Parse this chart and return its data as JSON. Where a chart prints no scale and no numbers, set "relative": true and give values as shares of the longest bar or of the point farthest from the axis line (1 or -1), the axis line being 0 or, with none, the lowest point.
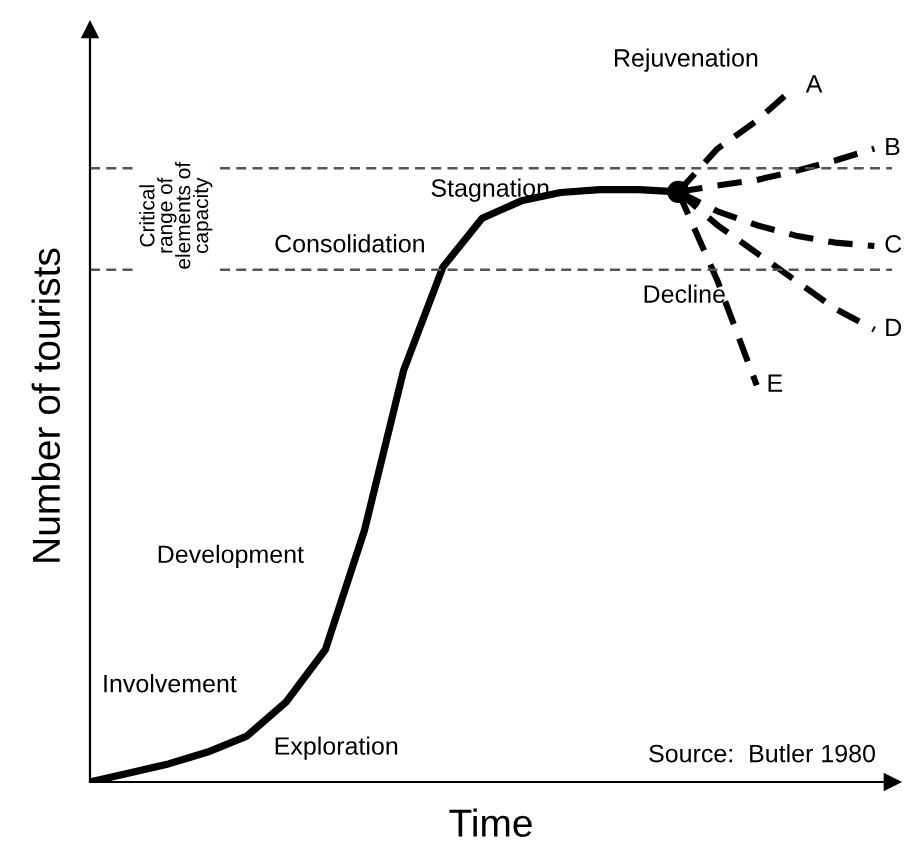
{
  "chart_data": {
    "type": "line",
    "relative": true,
    "xlabel": "Time",
    "ylabel": "Number of tourists",
    "line_style": "solid",
    "categories": [
      null,
      null,
      null,
      null,
      null,
      null,
      null,
      null,
      null,
      null,
      null,
      null,
      null,
      null,
      null,
      null,
      null,
      null,
      null,
      null,
      null
    ],
    "series": [
      {
        "color": "#000000",
        "values": [
          0,
          0.013,
          0.026,
          0.043,
          0.066,
          0.115,
          0.19,
          0.362,
          0.592,
          0.74,
          0.81,
          0.835,
          0.847,
          0.851,
          0.851,
          0.848,
          null,
          null,
          null,
          null,
          null
        ]
      },
      {
        "name": "A",
        "color": "#000000",
        "line_style": "dashed",
        "values": [
          null,
          null,
          null,
          null,
          null,
          null,
          null,
          null,
          null,
          null,
          null,
          null,
          null,
          null,
          null,
          0.848,
          0.91,
          0.95,
          1.0,
          null,
          null
        ]
      },
      {
        "name": "B",
        "color": "#000000",
        "line_style": "dashed",
        "values": [
          null,
          null,
          null,
          null,
          null,
          null,
          null,
          null,
          null,
          null,
          null,
          null,
          null,
          null,
          null,
          0.848,
          0.857,
          0.865,
          0.878,
          0.893,
          0.91
        ]
      },
      {
        "name": "C",
        "color": "#000000",
        "line_style": "dashed",
        "values": [
          null,
          null,
          null,
          null,
          null,
          null,
          null,
          null,
          null,
          null,
          null,
          null,
          null,
          null,
          null,
          0.848,
          0.82,
          0.8,
          0.785,
          0.775,
          0.77
        ]
      },
      {
        "name": "D",
        "color": "#000000",
        "line_style": "dashed",
        "values": [
          null,
          null,
          null,
          null,
          null,
          null,
          null,
          null,
          null,
          null,
          null,
          null,
          null,
          null,
          null,
          0.848,
          0.8,
          0.76,
          0.72,
          0.68,
          0.65
        ]
      },
      {
        "name": "E",
        "color": "#000000",
        "line_style": "dashed",
        "values": [
          null,
          null,
          null,
          null,
          null,
          null,
          null,
          null,
          null,
          null,
          null,
          null,
          null,
          null,
          null,
          0.848,
          0.72,
          0.57,
          null,
          null,
          null
        ]
      }
    ],
    "ref_lines": [
      {
        "axis": "y",
        "value": 0.882,
        "color": "#555555",
        "line_style": "dashed"
      },
      {
        "axis": "y",
        "value": 0.736,
        "color": "#555555",
        "line_style": "dashed"
      }
    ],
    "annotations": [
      "Critical\nrange of\nelements of\ncapacity",
      "Involvement",
      "Development",
      "Exploration",
      "Consolidation",
      "Stagnation",
      "Decline",
      "Rejuvenation",
      "Source:  Butler 1980"
    ]
  }
}
